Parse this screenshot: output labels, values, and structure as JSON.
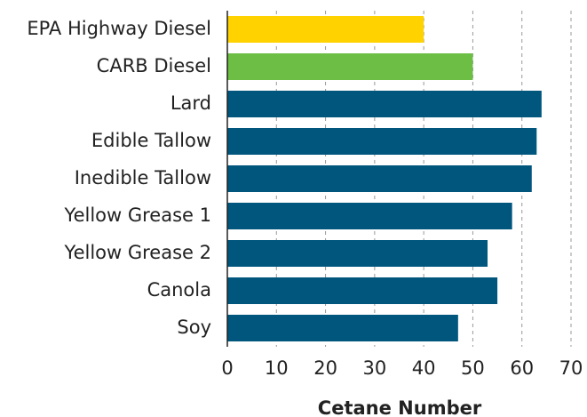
{
  "chart_data": {
    "type": "bar",
    "orientation": "horizontal",
    "categories": [
      "EPA Highway Diesel",
      "CARB Diesel",
      "Lard",
      "Edible Tallow",
      "Inedible Tallow",
      "Yellow Grease 1",
      "Yellow Grease 2",
      "Canola",
      "Soy"
    ],
    "values": [
      40,
      50,
      64,
      63,
      62,
      58,
      53,
      55,
      47
    ],
    "colors": [
      "#ffd200",
      "#6cbe45",
      "#00567d",
      "#00567d",
      "#00567d",
      "#00567d",
      "#00567d",
      "#00567d",
      "#00567d"
    ],
    "xlim": [
      0,
      70
    ],
    "xticks": [
      0,
      10,
      20,
      30,
      40,
      50,
      60,
      70
    ],
    "x_label": "Cetane Number",
    "grid": true
  }
}
